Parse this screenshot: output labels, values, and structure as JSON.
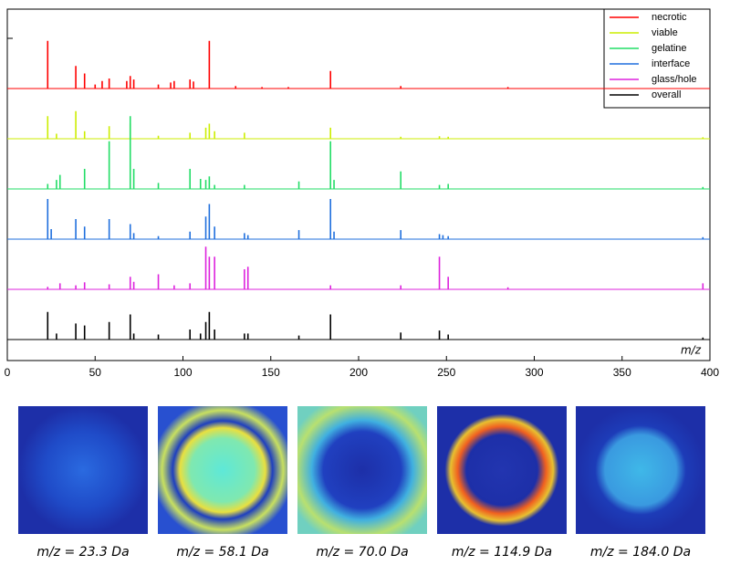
{
  "chart_data": {
    "type": "stem",
    "xlabel": "m/z",
    "xlim": [
      0,
      400
    ],
    "xticks": [
      0,
      50,
      100,
      150,
      200,
      250,
      300,
      350,
      400
    ],
    "legend": "upper right",
    "series": [
      {
        "name": "necrotic",
        "color": "#ff0000",
        "x": [
          23,
          39,
          44,
          50,
          54,
          58,
          68,
          70,
          72,
          86,
          93,
          95,
          104,
          106,
          115,
          130,
          145,
          160,
          184,
          224,
          285
        ],
        "values": [
          95,
          45,
          30,
          8,
          15,
          20,
          15,
          25,
          18,
          8,
          12,
          15,
          18,
          14,
          95,
          5,
          3,
          3,
          35,
          5,
          3
        ]
      },
      {
        "name": "viable",
        "color": "#ccee00",
        "x": [
          23,
          28,
          39,
          44,
          58,
          70,
          86,
          104,
          113,
          115,
          118,
          135,
          184,
          224,
          246,
          251,
          396
        ],
        "values": [
          45,
          10,
          55,
          15,
          25,
          30,
          6,
          12,
          22,
          30,
          15,
          12,
          22,
          4,
          5,
          4,
          3
        ]
      },
      {
        "name": "gelatine",
        "color": "#22dd66",
        "x": [
          23,
          28,
          30,
          44,
          58,
          70,
          72,
          86,
          104,
          110,
          113,
          115,
          118,
          135,
          166,
          184,
          186,
          224,
          246,
          251,
          396
        ],
        "values": [
          10,
          18,
          28,
          40,
          95,
          145,
          40,
          12,
          40,
          20,
          18,
          25,
          8,
          8,
          15,
          95,
          18,
          35,
          8,
          10,
          4
        ]
      },
      {
        "name": "interface",
        "color": "#1f6fdd",
        "x": [
          23,
          25,
          39,
          44,
          58,
          70,
          72,
          86,
          104,
          113,
          115,
          118,
          135,
          137,
          166,
          184,
          186,
          224,
          246,
          248,
          251,
          396
        ],
        "values": [
          80,
          20,
          40,
          25,
          40,
          30,
          12,
          6,
          15,
          45,
          70,
          25,
          12,
          8,
          18,
          80,
          15,
          18,
          10,
          8,
          6,
          4
        ]
      },
      {
        "name": "glass/hole",
        "color": "#dd22dd",
        "x": [
          23,
          30,
          39,
          44,
          58,
          70,
          72,
          86,
          95,
          104,
          113,
          115,
          118,
          135,
          137,
          184,
          224,
          246,
          251,
          285,
          396
        ],
        "values": [
          5,
          12,
          8,
          14,
          10,
          25,
          15,
          30,
          8,
          12,
          85,
          65,
          65,
          40,
          45,
          8,
          8,
          65,
          25,
          4,
          12
        ]
      },
      {
        "name": "overall",
        "color": "#000000",
        "x": [
          23,
          28,
          39,
          44,
          58,
          70,
          72,
          86,
          104,
          110,
          113,
          115,
          118,
          135,
          137,
          166,
          184,
          224,
          246,
          251,
          396
        ],
        "values": [
          55,
          12,
          32,
          28,
          35,
          50,
          12,
          10,
          20,
          12,
          35,
          55,
          20,
          12,
          12,
          8,
          50,
          14,
          18,
          10,
          4
        ]
      }
    ]
  },
  "panels": [
    {
      "caption": "m/z = 23.3 Da"
    },
    {
      "caption": "m/z = 58.1 Da"
    },
    {
      "caption": "m/z = 70.0 Da"
    },
    {
      "caption": "m/z = 114.9 Da"
    },
    {
      "caption": "m/z = 184.0 Da"
    }
  ]
}
